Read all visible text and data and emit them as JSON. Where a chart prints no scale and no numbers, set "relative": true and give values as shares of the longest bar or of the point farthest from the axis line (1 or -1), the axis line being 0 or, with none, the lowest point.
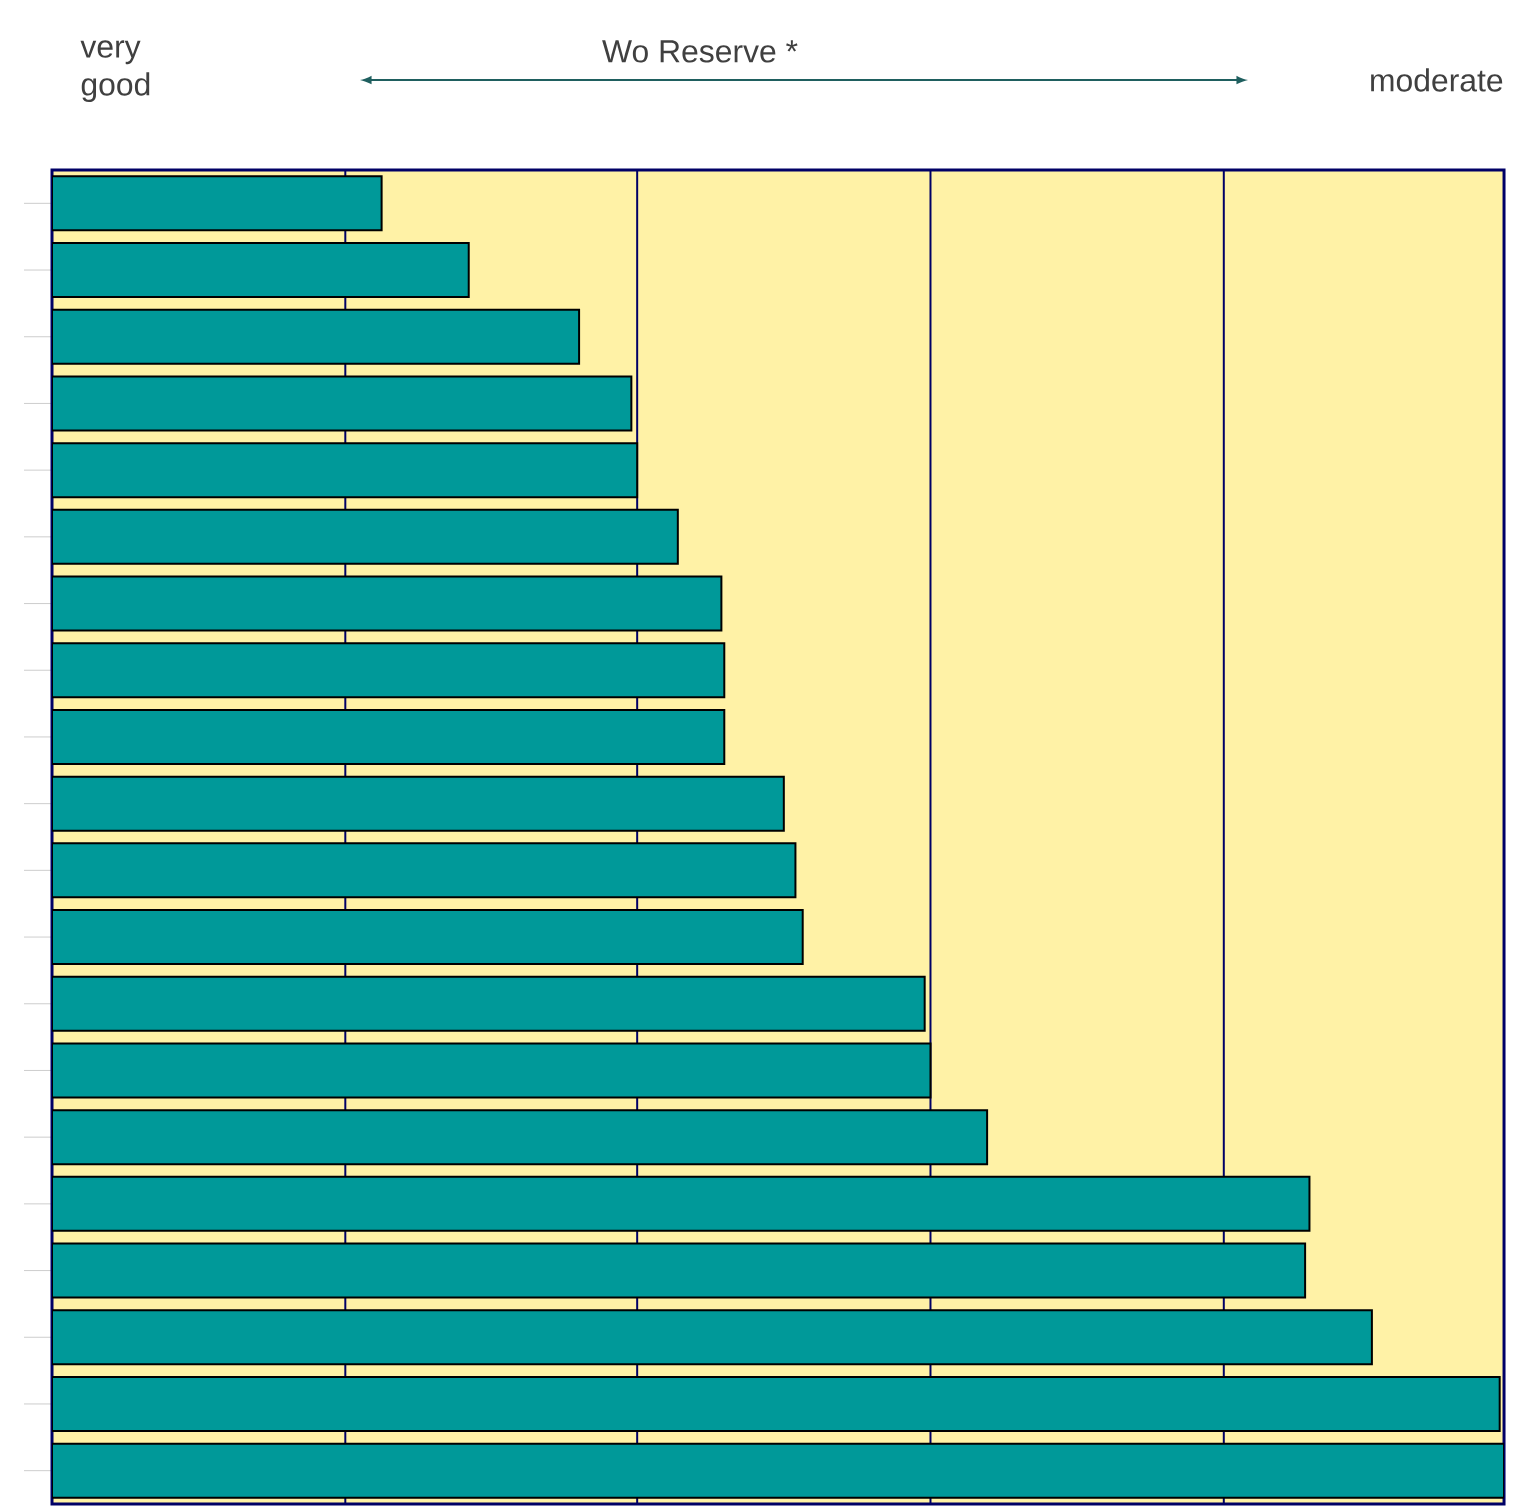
{
  "chart_data": {
    "type": "bar",
    "orientation": "horizontal",
    "relative": true,
    "ref_lines": [
      {
        "axis": "x",
        "value": 0.202,
        "color": "#000066"
      },
      {
        "axis": "x",
        "value": 0.403,
        "color": "#000066"
      },
      {
        "axis": "x",
        "value": 0.605,
        "color": "#000066"
      },
      {
        "axis": "x",
        "value": 0.807,
        "color": "#000066"
      }
    ],
    "categories": [
      null,
      null,
      null,
      null,
      null,
      null,
      null,
      null,
      null,
      null,
      null,
      null,
      null,
      null,
      null,
      null,
      null,
      null,
      null,
      null
    ],
    "values": [
      0.227,
      0.287,
      0.363,
      0.399,
      0.403,
      0.431,
      0.461,
      0.463,
      0.463,
      0.504,
      0.512,
      0.517,
      0.601,
      0.605,
      0.644,
      0.866,
      0.863,
      0.909,
      0.997,
      1
    ],
    "color": "#009999",
    "annotations": [
      "very good",
      "Wo Reserve *",
      "moderate"
    ]
  }
}
